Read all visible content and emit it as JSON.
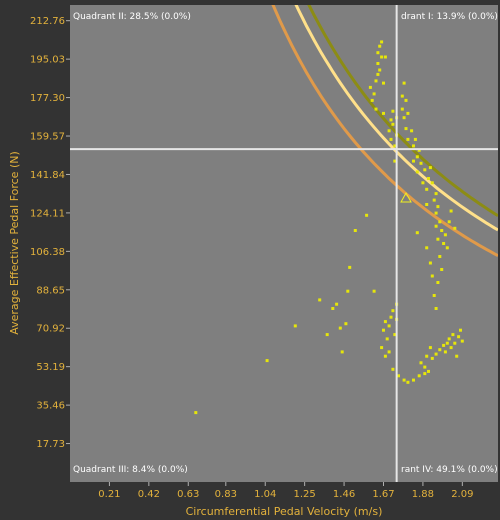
{
  "chart_data": {
    "type": "scatter",
    "xlabel": "Circumferential Pedal Velocity (m/s)",
    "ylabel": "Average Effective Pedal Force (N)",
    "xlim": [
      0.0,
      2.28
    ],
    "ylim": [
      0.0,
      220.0
    ],
    "x_ticks": [
      "0.21",
      "0.42",
      "0.63",
      "0.83",
      "1.04",
      "1.25",
      "1.46",
      "1.67",
      "1.88",
      "2.09"
    ],
    "y_ticks": [
      "212.76",
      "195.03",
      "177.30",
      "159.57",
      "141.84",
      "124.11",
      "106.38",
      "88.65",
      "70.92",
      "53.19",
      "35.46",
      "17.73"
    ],
    "x_tick_values": [
      0.21,
      0.42,
      0.63,
      0.83,
      1.04,
      1.25,
      1.46,
      1.67,
      1.88,
      2.09
    ],
    "y_tick_values": [
      212.76,
      195.03,
      177.3,
      159.57,
      141.84,
      124.11,
      106.38,
      88.65,
      70.92,
      53.19,
      35.46,
      17.73
    ],
    "quadrants": {
      "top_left": "Quadrant II: 28.5% (0.0%)",
      "top_right": "drant I: 13.9% (0.0%)",
      "bottom_left": "Quadrant III: 8.4% (0.0%)",
      "bottom_right": "rant IV: 49.1% (0.0%)"
    },
    "crosshair": {
      "x": 1.74,
      "y": 153.5
    },
    "average_marker": {
      "x": 1.79,
      "y": 131.0
    },
    "curves": [
      {
        "color": "#8c8c14",
        "power": 280
      },
      {
        "color": "#ffe08a",
        "power": 265
      },
      {
        "color": "#e09a4a",
        "power": 238
      }
    ],
    "point_color": "#e6e60a",
    "background_color": "#7f7f7f",
    "points": [
      [
        0.67,
        32
      ],
      [
        1.05,
        56
      ],
      [
        1.2,
        72
      ],
      [
        1.33,
        84
      ],
      [
        1.37,
        68
      ],
      [
        1.4,
        80
      ],
      [
        1.42,
        82
      ],
      [
        1.44,
        71
      ],
      [
        1.45,
        60
      ],
      [
        1.47,
        73
      ],
      [
        1.48,
        88
      ],
      [
        1.49,
        99
      ],
      [
        1.52,
        116
      ],
      [
        1.58,
        123
      ],
      [
        1.62,
        88
      ],
      [
        1.6,
        182
      ],
      [
        1.61,
        176
      ],
      [
        1.62,
        179
      ],
      [
        1.63,
        185
      ],
      [
        1.63,
        172
      ],
      [
        1.64,
        188
      ],
      [
        1.64,
        193
      ],
      [
        1.64,
        198
      ],
      [
        1.65,
        201
      ],
      [
        1.65,
        190
      ],
      [
        1.66,
        196
      ],
      [
        1.66,
        203
      ],
      [
        1.67,
        184
      ],
      [
        1.67,
        170
      ],
      [
        1.68,
        196
      ],
      [
        1.7,
        162
      ],
      [
        1.71,
        167
      ],
      [
        1.71,
        158
      ],
      [
        1.72,
        165
      ],
      [
        1.72,
        171
      ],
      [
        1.73,
        155
      ],
      [
        1.73,
        148
      ],
      [
        1.74,
        160
      ],
      [
        1.74,
        168
      ],
      [
        1.77,
        172
      ],
      [
        1.77,
        178
      ],
      [
        1.78,
        168
      ],
      [
        1.78,
        184
      ],
      [
        1.79,
        176
      ],
      [
        1.79,
        163
      ],
      [
        1.8,
        158
      ],
      [
        1.8,
        170
      ],
      [
        1.82,
        162
      ],
      [
        1.83,
        155
      ],
      [
        1.83,
        148
      ],
      [
        1.84,
        158
      ],
      [
        1.85,
        150
      ],
      [
        1.85,
        143
      ],
      [
        1.86,
        153
      ],
      [
        1.87,
        147
      ],
      [
        1.88,
        138
      ],
      [
        1.89,
        144
      ],
      [
        1.9,
        135
      ],
      [
        1.9,
        128
      ],
      [
        1.91,
        140
      ],
      [
        1.92,
        145
      ],
      [
        1.93,
        138
      ],
      [
        1.94,
        130
      ],
      [
        1.95,
        124
      ],
      [
        1.95,
        133
      ],
      [
        1.96,
        127
      ],
      [
        1.97,
        120
      ],
      [
        1.98,
        116
      ],
      [
        1.99,
        110
      ],
      [
        2.0,
        114
      ],
      [
        2.01,
        108
      ],
      [
        2.02,
        120
      ],
      [
        1.95,
        118
      ],
      [
        1.96,
        112
      ],
      [
        1.97,
        104
      ],
      [
        1.98,
        98
      ],
      [
        1.96,
        92
      ],
      [
        1.94,
        86
      ],
      [
        1.95,
        80
      ],
      [
        1.93,
        95
      ],
      [
        1.92,
        101
      ],
      [
        1.66,
        62
      ],
      [
        1.67,
        70
      ],
      [
        1.68,
        74
      ],
      [
        1.69,
        66
      ],
      [
        1.7,
        72
      ],
      [
        1.71,
        76
      ],
      [
        1.72,
        79
      ],
      [
        1.73,
        68
      ],
      [
        1.74,
        82
      ],
      [
        1.74,
        75
      ],
      [
        1.68,
        58
      ],
      [
        1.7,
        60
      ],
      [
        1.72,
        52
      ],
      [
        1.75,
        49
      ],
      [
        1.78,
        47
      ],
      [
        1.8,
        46
      ],
      [
        1.83,
        47
      ],
      [
        1.86,
        49
      ],
      [
        1.89,
        50
      ],
      [
        1.87,
        55
      ],
      [
        1.89,
        53
      ],
      [
        1.9,
        58
      ],
      [
        1.91,
        51
      ],
      [
        1.92,
        62
      ],
      [
        1.93,
        57
      ],
      [
        1.95,
        59
      ],
      [
        1.97,
        61
      ],
      [
        1.99,
        63
      ],
      [
        2.0,
        60
      ],
      [
        2.01,
        64
      ],
      [
        2.02,
        66
      ],
      [
        2.03,
        62
      ],
      [
        2.04,
        68
      ],
      [
        2.05,
        64
      ],
      [
        2.06,
        58
      ],
      [
        2.07,
        67
      ],
      [
        2.08,
        70
      ],
      [
        2.09,
        65
      ],
      [
        1.85,
        115
      ],
      [
        1.9,
        108
      ],
      [
        2.03,
        125
      ],
      [
        2.05,
        117
      ]
    ]
  }
}
